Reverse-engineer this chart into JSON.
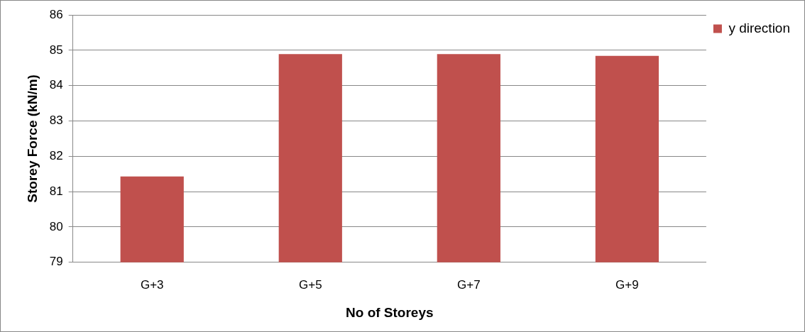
{
  "chart_data": {
    "type": "bar",
    "xlabel": "No of Storeys",
    "ylabel": "Storey Force (kN/m)",
    "categories": [
      "G+3",
      "G+5",
      "G+7",
      "G+9"
    ],
    "series": [
      {
        "name": "y direction",
        "color": "#c0504d",
        "values": [
          81.43,
          84.89,
          84.89,
          84.84
        ]
      }
    ],
    "ylim": [
      79,
      86
    ],
    "yticks": [
      79,
      80,
      81,
      82,
      83,
      84,
      85,
      86
    ],
    "grid": "y",
    "legend": "top right"
  }
}
